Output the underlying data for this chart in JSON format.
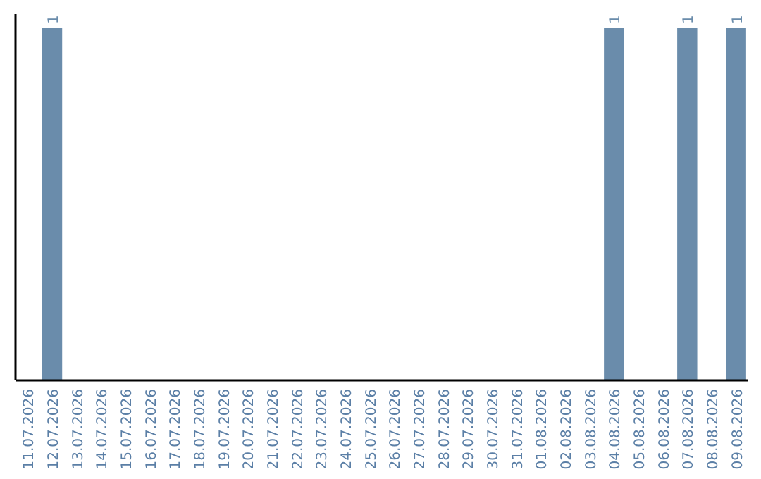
{
  "chart_data": {
    "type": "bar",
    "categories": [
      "11.07.2026",
      "12.07.2026",
      "13.07.2026",
      "14.07.2026",
      "15.07.2026",
      "16.07.2026",
      "17.07.2026",
      "18.07.2026",
      "19.07.2026",
      "20.07.2026",
      "21.07.2026",
      "22.07.2026",
      "23.07.2026",
      "24.07.2026",
      "25.07.2026",
      "26.07.2026",
      "27.07.2026",
      "28.07.2026",
      "29.07.2026",
      "30.07.2026",
      "31.07.2026",
      "01.08.2026",
      "02.08.2026",
      "03.08.2026",
      "04.08.2026",
      "05.08.2026",
      "06.08.2026",
      "07.08.2026",
      "08.08.2026",
      "09.08.2026"
    ],
    "values": [
      0,
      1,
      0,
      0,
      0,
      0,
      0,
      0,
      0,
      0,
      0,
      0,
      0,
      0,
      0,
      0,
      0,
      0,
      0,
      0,
      0,
      0,
      0,
      0,
      1,
      0,
      0,
      1,
      0,
      1
    ],
    "value_labels": [
      null,
      "1",
      null,
      null,
      null,
      null,
      null,
      null,
      null,
      null,
      null,
      null,
      null,
      null,
      null,
      null,
      null,
      null,
      null,
      null,
      null,
      null,
      null,
      null,
      "1",
      null,
      null,
      "1",
      null,
      "1"
    ],
    "color": "#6a8cab",
    "tick_labels": "x"
  }
}
